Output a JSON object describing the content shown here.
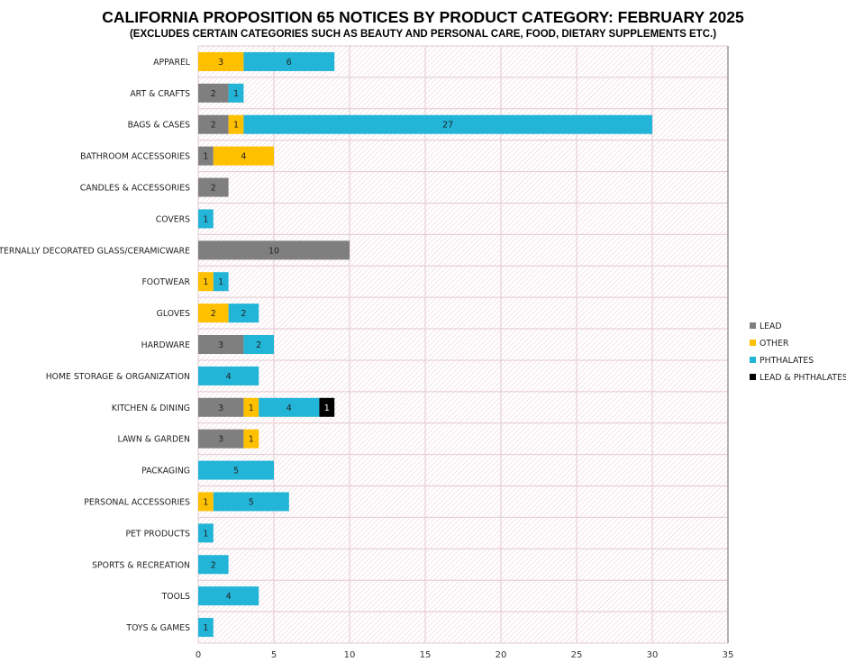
{
  "chart_data": {
    "type": "bar",
    "orientation": "horizontal",
    "stacked": true,
    "title": "CALIFORNIA PROPOSITION 65 NOTICES BY PRODUCT CATEGORY: FEBRUARY 2025",
    "subtitle": "(EXCLUDES CERTAIN CATEGORIES SUCH AS BEAUTY AND PERSONAL CARE, FOOD, DIETARY SUPPLEMENTS ETC.)",
    "xlabel": "",
    "ylabel": "",
    "xlim": [
      0,
      35
    ],
    "xticks": [
      0,
      5,
      10,
      15,
      20,
      25,
      30,
      35
    ],
    "grid": true,
    "legend": "right",
    "categories": [
      "APPAREL",
      "ART & CRAFTS",
      "BAGS & CASES",
      "BATHROOM ACCESSORIES",
      "CANDLES & ACCESSORIES",
      "COVERS",
      "EXTERNALLY DECORATED GLASS/CERAMICWARE",
      "FOOTWEAR",
      "GLOVES",
      "HARDWARE",
      "HOME STORAGE & ORGANIZATION",
      "KITCHEN & DINING",
      "LAWN & GARDEN",
      "PACKAGING",
      "PERSONAL ACCESSORIES",
      "PET PRODUCTS",
      "SPORTS & RECREATION",
      "TOOLS",
      "TOYS & GAMES"
    ],
    "series": [
      {
        "name": "LEAD",
        "color": "#7f7f7f",
        "values": [
          0,
          2,
          2,
          1,
          2,
          0,
          10,
          0,
          0,
          3,
          0,
          3,
          3,
          0,
          0,
          0,
          0,
          0,
          0
        ]
      },
      {
        "name": "OTHER",
        "color": "#ffc000",
        "values": [
          3,
          0,
          1,
          4,
          0,
          0,
          0,
          1,
          2,
          0,
          0,
          1,
          1,
          0,
          1,
          0,
          0,
          0,
          0
        ]
      },
      {
        "name": "PHTHALATES",
        "color": "#22b5d8",
        "values": [
          6,
          1,
          27,
          0,
          0,
          1,
          0,
          1,
          2,
          2,
          4,
          4,
          0,
          5,
          5,
          1,
          2,
          4,
          1
        ]
      },
      {
        "name": "LEAD & PHTHALATES",
        "color": "#000000",
        "values": [
          0,
          0,
          0,
          0,
          0,
          0,
          0,
          0,
          0,
          0,
          0,
          1,
          0,
          0,
          0,
          0,
          0,
          0,
          0
        ]
      }
    ]
  }
}
